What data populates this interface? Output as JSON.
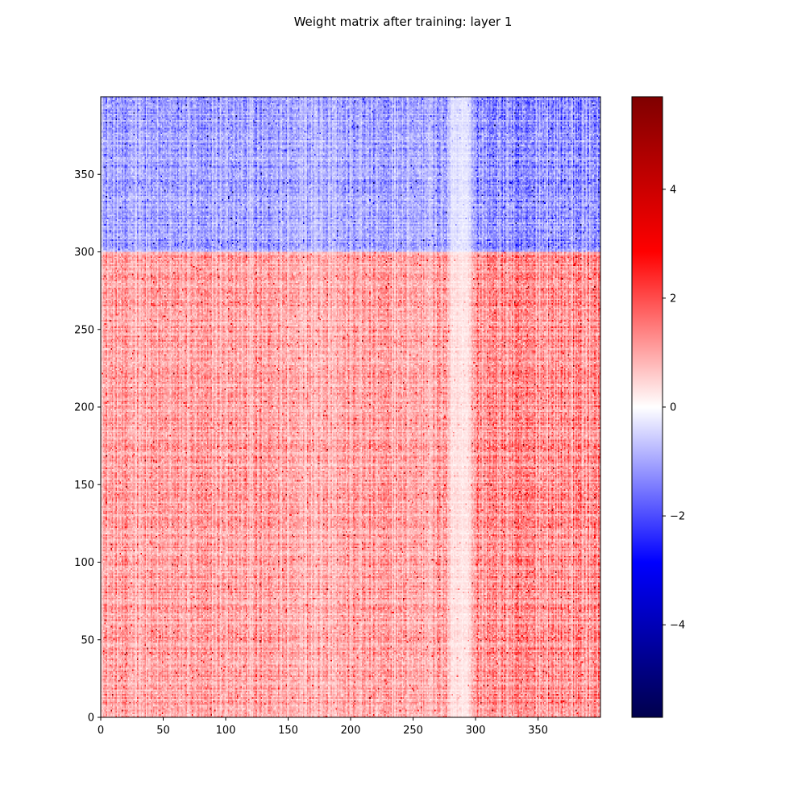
{
  "chart_data": {
    "type": "heatmap",
    "title": "Weight matrix after training: layer 1",
    "xlabel": "",
    "ylabel": "",
    "xlim": [
      0,
      400
    ],
    "ylim": [
      0,
      400
    ],
    "x_ticks": [
      0,
      50,
      100,
      150,
      200,
      250,
      300,
      350
    ],
    "x_tick_labels": [
      "0",
      "50",
      "100",
      "150",
      "200",
      "250",
      "300",
      "350"
    ],
    "y_ticks": [
      0,
      50,
      100,
      150,
      200,
      250,
      300,
      350
    ],
    "y_tick_labels": [
      "0",
      "50",
      "100",
      "150",
      "200",
      "250",
      "300",
      "350"
    ],
    "matrix_shape": [
      400,
      400
    ],
    "regions": [
      {
        "rows": [
          0,
          300
        ],
        "sign": "positive",
        "typical_magnitude": 1.0
      },
      {
        "rows": [
          300,
          400
        ],
        "sign": "negative",
        "typical_magnitude": -1.0
      }
    ],
    "grid": false,
    "colorbar": {
      "colormap": "seismic",
      "range": [
        -5.7,
        5.7
      ],
      "ticks": [
        -4,
        -2,
        0,
        2,
        4
      ],
      "tick_labels": [
        "−4",
        "−2",
        "0",
        "2",
        "4"
      ],
      "colors": [
        "#00004c",
        "#0000ff",
        "#ffffff",
        "#ff0000",
        "#7f0000"
      ]
    }
  }
}
